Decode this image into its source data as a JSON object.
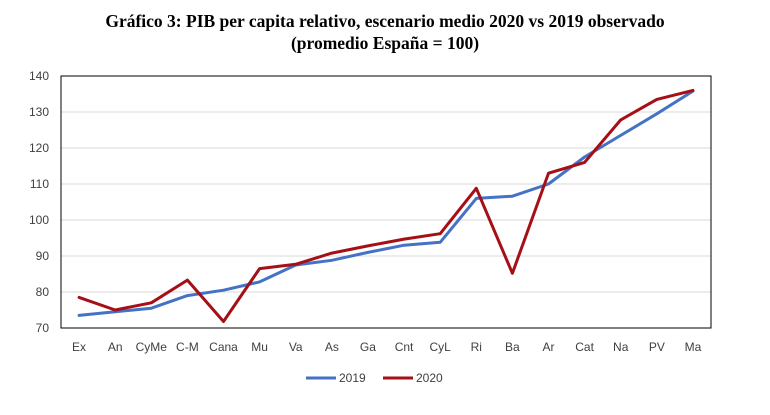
{
  "chart_data": {
    "type": "line",
    "title": "Gráfico 3: PIB per capita relativo, escenario medio 2020 vs 2019 observado",
    "subtitle": "(promedio España = 100)",
    "categories": [
      "Ex",
      "An",
      "CyMe",
      "C-M",
      "Cana",
      "Mu",
      "Va",
      "As",
      "Ga",
      "Cnt",
      "CyL",
      "Ri",
      "Ba",
      "Ar",
      "Cat",
      "Na",
      "PV",
      "Ma"
    ],
    "series": [
      {
        "name": "2019",
        "color": "#4472C4",
        "values": [
          73.5,
          74.5,
          75.5,
          79.0,
          80.5,
          82.8,
          87.5,
          88.8,
          91.0,
          93.0,
          93.8,
          106.0,
          106.6,
          110.0,
          117.5,
          123.5,
          129.5,
          135.8
        ]
      },
      {
        "name": "2020",
        "color": "#A50F15",
        "values": [
          78.5,
          75.0,
          77.0,
          83.3,
          71.8,
          86.5,
          87.7,
          90.8,
          92.8,
          94.7,
          96.2,
          108.8,
          85.2,
          113.0,
          116.0,
          127.8,
          133.5,
          136.0
        ]
      }
    ],
    "ylim": [
      70,
      140
    ],
    "yticks": [
      70,
      80,
      90,
      100,
      110,
      120,
      130,
      140
    ],
    "grid": true,
    "legend_position": "bottom"
  }
}
